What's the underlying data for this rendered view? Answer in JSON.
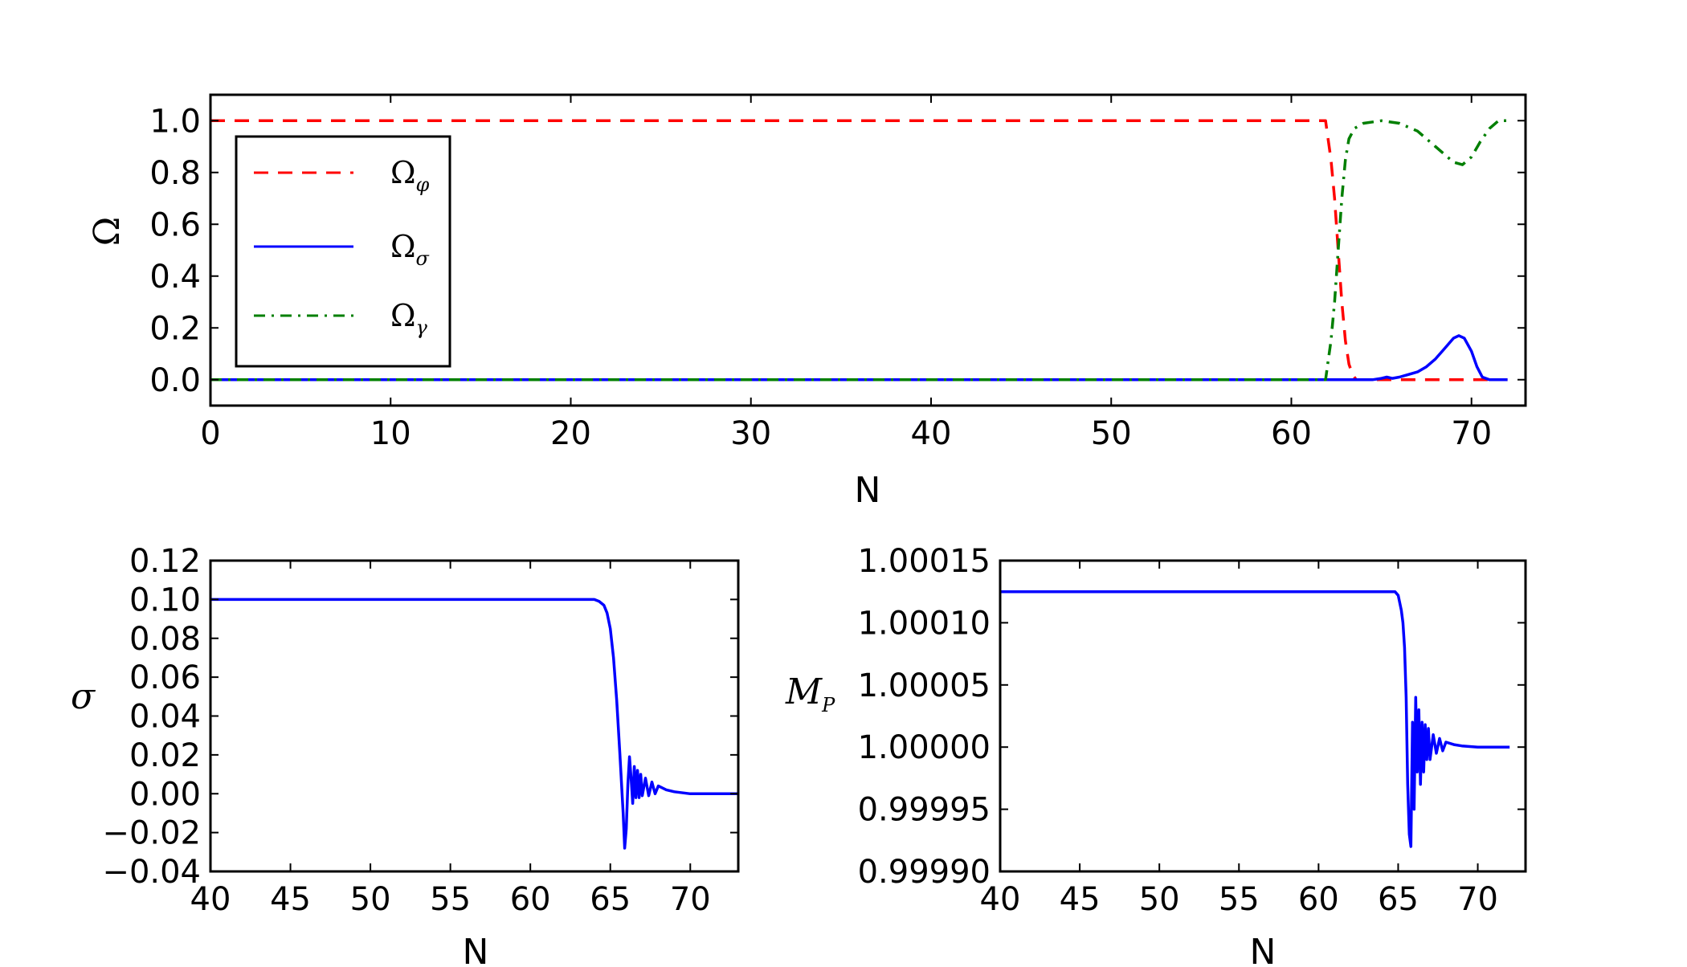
{
  "colors": {
    "omega_phi": "#ff0000",
    "omega_sigma": "#0000ff",
    "omega_gamma": "#007f00",
    "axes": "#000000"
  },
  "chart_data": [
    {
      "type": "line",
      "xlabel": "N",
      "ylabel": "Ω",
      "xlim": [
        0,
        73
      ],
      "ylim": [
        -0.1,
        1.1
      ],
      "xticks": [
        "0",
        "10",
        "20",
        "30",
        "40",
        "50",
        "60",
        "70"
      ],
      "yticks": [
        "0.0",
        "0.2",
        "0.4",
        "0.6",
        "0.8",
        "1.0"
      ],
      "legend_position": "upper-left",
      "grid": false,
      "series": [
        {
          "name": "Ω_φ",
          "label_main": "Ω",
          "label_sub": "φ",
          "style": "dashed",
          "color_key": "omega_phi",
          "x": [
            0,
            61.9,
            62.0,
            62.2,
            62.4,
            62.6,
            62.8,
            63.0,
            63.2,
            63.4,
            63.6,
            64.0,
            66.0,
            70.0,
            72.0
          ],
          "y": [
            1.0,
            1.0,
            0.95,
            0.85,
            0.7,
            0.5,
            0.3,
            0.15,
            0.06,
            0.02,
            0.0,
            0.0,
            0.0,
            0.0,
            0.0
          ]
        },
        {
          "name": "Ω_σ",
          "label_main": "Ω",
          "label_sub": "σ",
          "style": "solid",
          "color_key": "omega_sigma",
          "x": [
            0,
            64.5,
            65.0,
            65.3,
            65.6,
            66.0,
            66.5,
            67.0,
            67.5,
            68.0,
            68.5,
            69.0,
            69.3,
            69.6,
            70.0,
            70.3,
            70.6,
            71.0,
            72.0
          ],
          "y": [
            0.0,
            0.0,
            0.005,
            0.01,
            0.005,
            0.01,
            0.02,
            0.03,
            0.05,
            0.08,
            0.12,
            0.16,
            0.17,
            0.16,
            0.11,
            0.05,
            0.01,
            0.0,
            0.0
          ]
        },
        {
          "name": "Ω_γ",
          "label_main": "Ω",
          "label_sub": "γ",
          "style": "dashdot",
          "color_key": "omega_gamma",
          "x": [
            0,
            61.9,
            62.0,
            62.2,
            62.4,
            62.6,
            62.8,
            63.0,
            63.2,
            63.5,
            64.0,
            65.0,
            66.0,
            67.0,
            68.0,
            69.0,
            69.5,
            70.0,
            70.5,
            71.0,
            71.5,
            72.0
          ],
          "y": [
            0.0,
            0.0,
            0.05,
            0.15,
            0.3,
            0.5,
            0.7,
            0.85,
            0.93,
            0.97,
            0.99,
            1.0,
            0.99,
            0.96,
            0.9,
            0.84,
            0.83,
            0.86,
            0.92,
            0.97,
            1.0,
            1.0
          ]
        }
      ]
    },
    {
      "type": "line",
      "xlabel": "N",
      "ylabel": "σ",
      "xlim": [
        40,
        73
      ],
      "ylim": [
        -0.04,
        0.12
      ],
      "xticks": [
        "40",
        "45",
        "50",
        "55",
        "60",
        "65",
        "70"
      ],
      "yticks": [
        "−0.04",
        "−0.02",
        "0.00",
        "0.02",
        "0.04",
        "0.06",
        "0.08",
        "0.10",
        "0.12"
      ],
      "series": [
        {
          "name": "σ",
          "style": "solid",
          "color_key": "omega_sigma",
          "x": [
            40,
            64.0,
            64.3,
            64.6,
            64.8,
            65.0,
            65.2,
            65.4,
            65.6,
            65.8,
            65.9,
            66.0,
            66.1,
            66.2,
            66.3,
            66.4,
            66.5,
            66.6,
            66.7,
            66.8,
            66.9,
            67.0,
            67.2,
            67.4,
            67.6,
            67.8,
            68.0,
            68.5,
            69.0,
            70.0,
            71.0,
            73.0
          ],
          "y": [
            0.1,
            0.1,
            0.099,
            0.097,
            0.093,
            0.085,
            0.07,
            0.048,
            0.02,
            -0.01,
            -0.028,
            -0.018,
            0.005,
            0.019,
            0.008,
            -0.005,
            0.014,
            -0.002,
            0.012,
            -0.002,
            0.01,
            -0.001,
            0.008,
            -0.001,
            0.006,
            0.0,
            0.004,
            0.002,
            0.001,
            0.0,
            0.0,
            0.0
          ]
        }
      ]
    },
    {
      "type": "line",
      "xlabel": "N",
      "ylabel": "M_P",
      "ylabel_main": "M",
      "ylabel_sub": "P",
      "xlim": [
        40,
        73
      ],
      "ylim": [
        0.9999,
        1.00015
      ],
      "xticks": [
        "40",
        "45",
        "50",
        "55",
        "60",
        "65",
        "70"
      ],
      "yticks": [
        "0.99990",
        "0.99995",
        "1.00000",
        "1.00005",
        "1.00010",
        "1.00015"
      ],
      "series": [
        {
          "name": "M_P",
          "style": "solid",
          "color_key": "omega_sigma",
          "x": [
            40,
            64.8,
            65.0,
            65.2,
            65.3,
            65.4,
            65.5,
            65.6,
            65.7,
            65.8,
            65.9,
            66.0,
            66.1,
            66.2,
            66.3,
            66.4,
            66.5,
            66.6,
            66.7,
            66.8,
            66.9,
            67.0,
            67.2,
            67.4,
            67.6,
            67.8,
            68.0,
            68.5,
            69.0,
            70.0,
            72.0
          ],
          "y": [
            1.000125,
            1.000125,
            1.000122,
            1.00011,
            1.0001,
            1.00008,
            1.00004,
            0.99997,
            0.99993,
            0.99992,
            1.00002,
            0.99995,
            1.00004,
            0.99998,
            1.00003,
            0.99997,
            1.00002,
            0.99998,
            1.000018,
            0.99999,
            1.000015,
            0.99999,
            1.00001,
            0.999995,
            1.000007,
            0.999997,
            1.000004,
            1.000002,
            1.000001,
            1.0,
            1.0
          ]
        }
      ]
    }
  ]
}
